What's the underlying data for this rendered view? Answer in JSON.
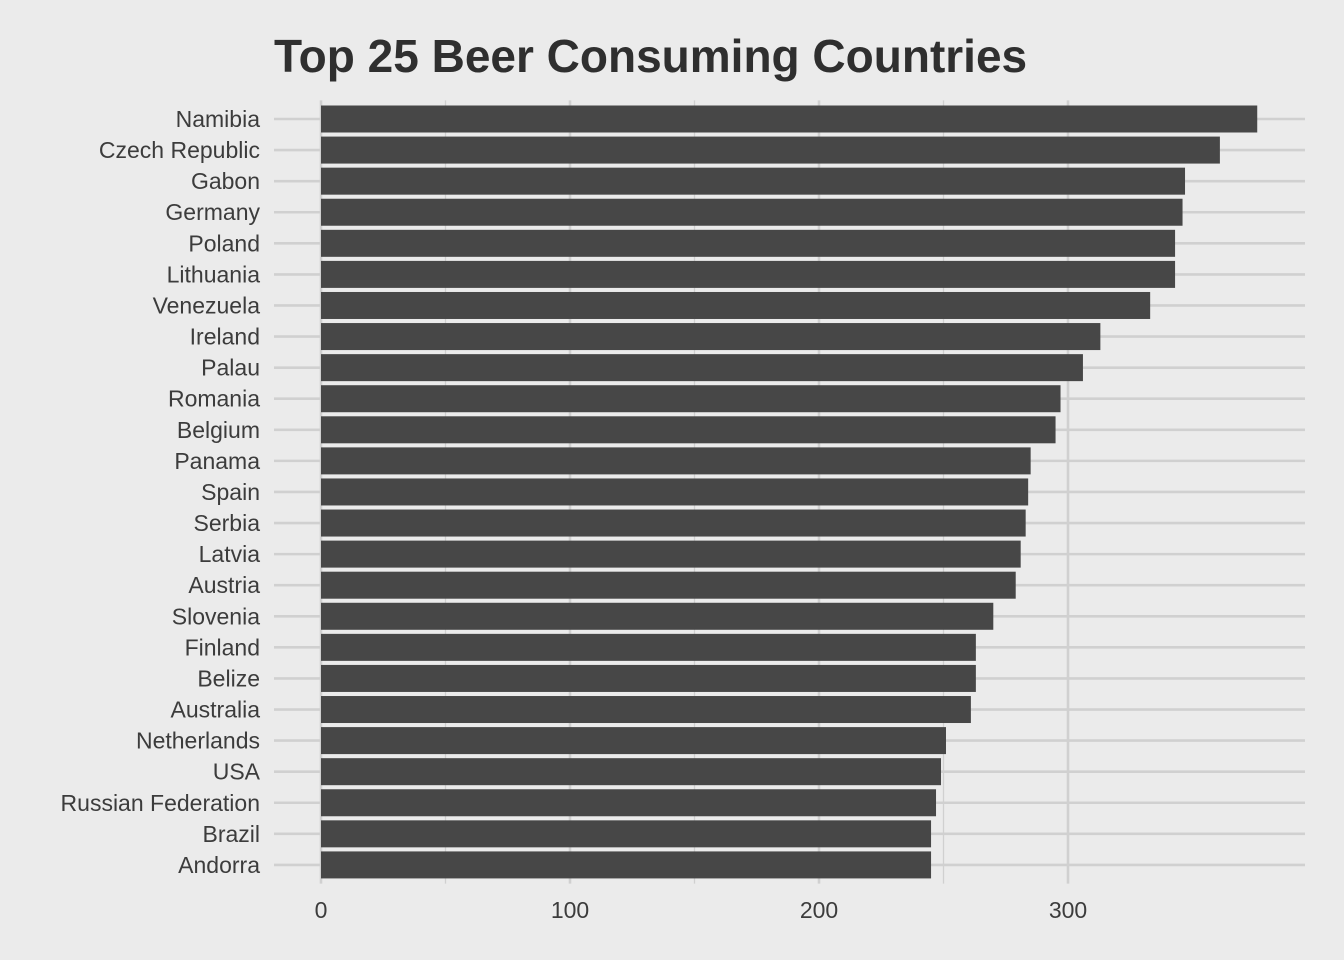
{
  "chart_data": {
    "type": "bar",
    "orientation": "horizontal",
    "title": "Top 25 Beer Consuming Countries",
    "xlabel": "",
    "ylabel": "",
    "xlim": [
      0,
      394
    ],
    "x_ticks": [
      0,
      100,
      200,
      300
    ],
    "grid": true,
    "legend": "none",
    "colors": {
      "background": "#ebebeb",
      "bar": "#474747",
      "grid": "#d0d0d0",
      "title": "#2f2f2f",
      "text": "#3c3c3c"
    },
    "categories": [
      "Namibia",
      "Czech Republic",
      "Gabon",
      "Germany",
      "Poland",
      "Lithuania",
      "Venezuela",
      "Ireland",
      "Palau",
      "Romania",
      "Belgium",
      "Panama",
      "Spain",
      "Serbia",
      "Latvia",
      "Austria",
      "Slovenia",
      "Finland",
      "Belize",
      "Australia",
      "Netherlands",
      "USA",
      "Russian Federation",
      "Brazil",
      "Andorra"
    ],
    "values": [
      376,
      361,
      347,
      346,
      343,
      343,
      333,
      313,
      306,
      297,
      295,
      285,
      284,
      283,
      281,
      279,
      270,
      263,
      263,
      261,
      251,
      249,
      247,
      245,
      245
    ]
  }
}
